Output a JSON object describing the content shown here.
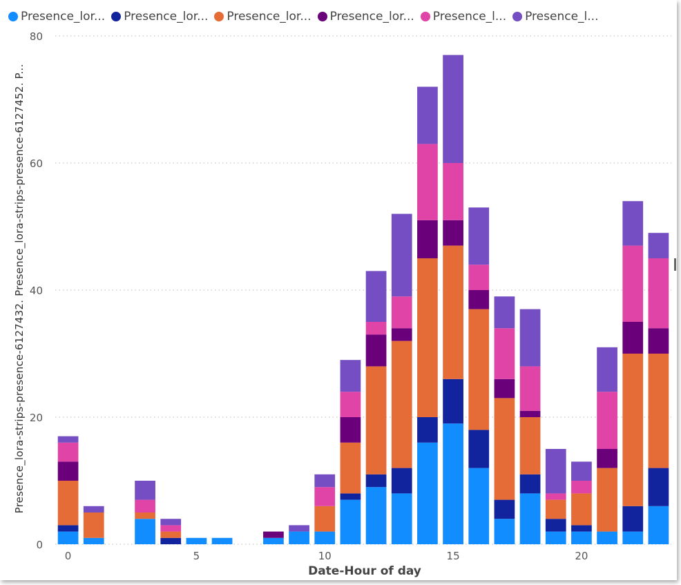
{
  "chart_data": {
    "type": "bar",
    "stacked": true,
    "title": "",
    "xlabel": "Date-Hour of day",
    "ylabel": "Presence_lora-strips-presence-6127432. Presence_lora-strips-presence-6127452. P...",
    "ylim": [
      0,
      80
    ],
    "yticks": [
      "0",
      "20",
      "40",
      "60",
      "80"
    ],
    "xticks": [
      "0",
      "5",
      "10",
      "15",
      "20"
    ],
    "grid": true,
    "legend_position": "top",
    "x": [
      0,
      1,
      3,
      4,
      5,
      6,
      8,
      9,
      10,
      11,
      12,
      13,
      14,
      15,
      16,
      17,
      18,
      19,
      20,
      21,
      22,
      23
    ],
    "series": [
      {
        "name": "Presence_lor...",
        "color": "#118DFF",
        "values": [
          2,
          1,
          4,
          0,
          1,
          1,
          1,
          2,
          2,
          7,
          9,
          8,
          16,
          19,
          12,
          4,
          8,
          2,
          2,
          2,
          2,
          6
        ]
      },
      {
        "name": "Presence_lor...",
        "color": "#12239E",
        "values": [
          1,
          0,
          0,
          1,
          0,
          0,
          0,
          0,
          0,
          1,
          2,
          4,
          4,
          7,
          6,
          3,
          3,
          2,
          1,
          0,
          4,
          6
        ]
      },
      {
        "name": "Presence_lor...",
        "color": "#E66C37",
        "values": [
          7,
          4,
          1,
          1,
          0,
          0,
          0,
          0,
          4,
          8,
          17,
          20,
          25,
          21,
          19,
          16,
          9,
          3,
          5,
          10,
          24,
          18
        ]
      },
      {
        "name": "Presence_lor...",
        "color": "#6B007B",
        "values": [
          3,
          0,
          0,
          0,
          0,
          0,
          1,
          0,
          0,
          4,
          5,
          2,
          6,
          4,
          3,
          3,
          1,
          0,
          0,
          3,
          5,
          4
        ]
      },
      {
        "name": "Presence_l...",
        "color": "#E044A7",
        "values": [
          3,
          0,
          2,
          1,
          0,
          0,
          0,
          0,
          3,
          4,
          2,
          5,
          12,
          9,
          4,
          8,
          7,
          1,
          2,
          9,
          12,
          11
        ]
      },
      {
        "name": "Presence_l...",
        "color": "#744EC2",
        "values": [
          1,
          1,
          3,
          1,
          0,
          0,
          0,
          1,
          2,
          5,
          8,
          13,
          9,
          17,
          9,
          5,
          9,
          7,
          3,
          7,
          7,
          4
        ]
      }
    ]
  }
}
